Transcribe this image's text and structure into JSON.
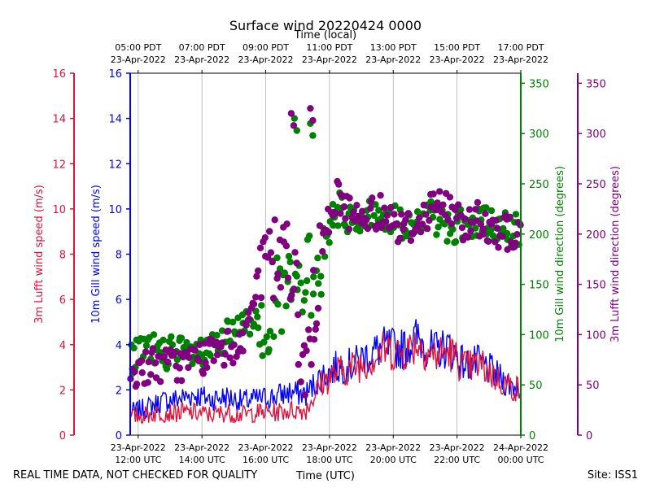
{
  "chart_data": {
    "type": "line+scatter",
    "title": "Surface wind 20220424 0000",
    "top_axis_label": "Time (local)",
    "xlabel": "Time (UTC)",
    "footer_left": "REAL TIME DATA, NOT CHECKED FOR QUALITY",
    "footer_right": "Site: ISS1",
    "x_hours_utc": [
      11.75,
      24.0
    ],
    "bottom_ticks": [
      {
        "hour": 12,
        "line1": "23-Apr-2022",
        "line2": "12:00 UTC"
      },
      {
        "hour": 14,
        "line1": "23-Apr-2022",
        "line2": "14:00 UTC"
      },
      {
        "hour": 16,
        "line1": "23-Apr-2022",
        "line2": "16:00 UTC"
      },
      {
        "hour": 18,
        "line1": "23-Apr-2022",
        "line2": "18:00 UTC"
      },
      {
        "hour": 20,
        "line1": "23-Apr-2022",
        "line2": "20:00 UTC"
      },
      {
        "hour": 22,
        "line1": "23-Apr-2022",
        "line2": "22:00 UTC"
      },
      {
        "hour": 24,
        "line1": "24-Apr-2022",
        "line2": "00:00 UTC"
      }
    ],
    "top_ticks": [
      {
        "hour": 12,
        "line1": "05:00 PDT",
        "line2": "23-Apr-2022"
      },
      {
        "hour": 14,
        "line1": "07:00 PDT",
        "line2": "23-Apr-2022"
      },
      {
        "hour": 16,
        "line1": "09:00 PDT",
        "line2": "23-Apr-2022"
      },
      {
        "hour": 18,
        "line1": "11:00 PDT",
        "line2": "23-Apr-2022"
      },
      {
        "hour": 20,
        "line1": "13:00 PDT",
        "line2": "23-Apr-2022"
      },
      {
        "hour": 22,
        "line1": "15:00 PDT",
        "line2": "23-Apr-2022"
      },
      {
        "hour": 24,
        "line1": "17:00 PDT",
        "line2": "23-Apr-2022"
      }
    ],
    "axes": {
      "lufft_speed": {
        "label": "3m Lufft wind speed (m/s)",
        "color": "#dc143c",
        "ylim": [
          0,
          16
        ],
        "ticks": [
          0,
          2,
          4,
          6,
          8,
          10,
          12,
          14,
          16
        ]
      },
      "gill_speed": {
        "label": "10m Gill wind speed (m/s)",
        "color": "#0000ff",
        "ylim": [
          0,
          16
        ],
        "ticks": [
          0,
          2,
          4,
          6,
          8,
          10,
          12,
          14,
          16
        ]
      },
      "gill_dir": {
        "label": "10m Gill wind direction (degrees)",
        "color": "#008000",
        "ylim": [
          0,
          360
        ],
        "ticks": [
          0,
          50,
          100,
          150,
          200,
          250,
          300,
          350
        ]
      },
      "lufft_dir": {
        "label": "3m Lufft wind direction (degrees)",
        "color": "#800080",
        "ylim": [
          0,
          360
        ],
        "ticks": [
          0,
          50,
          100,
          150,
          200,
          250,
          300,
          350
        ]
      }
    },
    "series": [
      {
        "name": "10m Gill wind speed",
        "kind": "line",
        "axis": "gill_speed",
        "color": "#0000ff",
        "x": [
          11.75,
          12.25,
          12.75,
          13.25,
          13.75,
          14.25,
          14.75,
          15.25,
          15.75,
          16.25,
          16.75,
          17.25,
          17.75,
          18.25,
          18.75,
          19.25,
          19.75,
          20.25,
          20.75,
          21.25,
          21.75,
          22.25,
          22.75,
          23.25,
          23.75,
          24.0
        ],
        "y": [
          1.0,
          1.2,
          1.5,
          1.6,
          1.8,
          1.6,
          1.7,
          1.5,
          1.6,
          1.7,
          1.9,
          1.8,
          2.6,
          3.0,
          3.1,
          3.6,
          3.9,
          3.8,
          4.3,
          3.7,
          3.9,
          3.1,
          3.2,
          2.6,
          2.2,
          2.1
        ]
      },
      {
        "name": "3m Lufft wind speed",
        "kind": "line",
        "axis": "lufft_speed",
        "color": "#dc143c",
        "x": [
          11.75,
          12.25,
          12.75,
          13.25,
          13.75,
          14.25,
          14.75,
          15.25,
          15.75,
          16.25,
          16.75,
          17.25,
          17.75,
          18.25,
          18.75,
          19.25,
          19.75,
          20.25,
          20.75,
          21.25,
          21.75,
          22.25,
          22.75,
          23.25,
          23.75,
          24.0
        ],
        "y": [
          0.8,
          0.9,
          1.0,
          1.0,
          1.0,
          0.9,
          1.0,
          0.9,
          1.0,
          1.0,
          1.1,
          1.1,
          2.3,
          2.8,
          3.0,
          3.3,
          3.8,
          3.6,
          4.1,
          3.5,
          3.7,
          3.0,
          3.1,
          2.5,
          2.1,
          2.0
        ]
      },
      {
        "name": "10m Gill wind direction",
        "kind": "scatter",
        "axis": "gill_dir",
        "color": "#008000",
        "x": [
          11.75,
          12.25,
          12.75,
          13.25,
          13.75,
          14.25,
          14.75,
          15.25,
          15.75,
          16.25,
          16.75,
          16.9,
          17.25,
          17.4,
          17.75,
          18.25,
          18.75,
          19.25,
          19.75,
          20.25,
          20.75,
          21.25,
          21.75,
          22.25,
          22.75,
          23.25,
          23.75,
          24.0
        ],
        "y": [
          75,
          85,
          85,
          80,
          80,
          80,
          95,
          105,
          120,
          130,
          140,
          315,
          145,
          310,
          185,
          225,
          215,
          220,
          215,
          210,
          210,
          215,
          210,
          205,
          210,
          205,
          205,
          200
        ]
      },
      {
        "name": "3m Lufft wind direction",
        "kind": "scatter",
        "axis": "lufft_dir",
        "color": "#800080",
        "x": [
          11.75,
          12.25,
          12.75,
          13.25,
          13.75,
          14.25,
          14.75,
          15.25,
          15.75,
          16.25,
          16.75,
          16.8,
          17.25,
          17.4,
          17.75,
          18.25,
          18.75,
          19.25,
          19.75,
          20.25,
          20.75,
          21.25,
          21.75,
          22.25,
          22.75,
          23.25,
          23.75,
          24.0
        ],
        "y": [
          60,
          70,
          70,
          70,
          75,
          80,
          85,
          95,
          145,
          175,
          180,
          320,
          60,
          325,
          185,
          240,
          215,
          220,
          225,
          205,
          210,
          230,
          225,
          210,
          215,
          205,
          200,
          200
        ]
      }
    ]
  }
}
